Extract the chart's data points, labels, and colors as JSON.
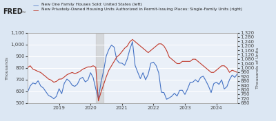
{
  "legend1": "New One Family Houses Sold: United States (left)",
  "legend2": "New Privately-Owned Housing Units Authorized in Permit-Issuing Places: Single-Family Units (right)",
  "ylabel_left": "Thousands",
  "ylabel_right": "Thousands of Units",
  "ylim_left": [
    500,
    1100
  ],
  "ylim_right": [
    680,
    1320
  ],
  "bg_color": "#dce7f3",
  "plot_bg_color": "#eaf0f8",
  "line1_color": "#4472c4",
  "line2_color": "#c0392b",
  "grid_color": "#ffffff",
  "new_homes_sold": [
    592,
    645,
    670,
    662,
    689,
    644,
    627,
    594,
    563,
    552,
    535,
    556,
    621,
    578,
    668,
    703,
    685,
    651,
    641,
    660,
    706,
    718,
    679,
    695,
    758,
    716,
    619,
    538,
    676,
    776,
    901,
    958,
    994,
    976,
    868,
    841,
    839,
    821,
    875,
    958,
    1023,
    820,
    762,
    707,
    758,
    697,
    745,
    839,
    848,
    819,
    757,
    591,
    588,
    531,
    542,
    557,
    582,
    558,
    607,
    608,
    572,
    618,
    676,
    677,
    698,
    679,
    718,
    728,
    688,
    643,
    588,
    664,
    677,
    658,
    697,
    619,
    638,
    698,
    737,
    718,
    748
  ],
  "permits": [
    1002,
    1018,
    988,
    978,
    966,
    957,
    937,
    918,
    897,
    887,
    868,
    876,
    896,
    898,
    916,
    936,
    948,
    957,
    947,
    955,
    968,
    987,
    997,
    1008,
    1008,
    1018,
    1005,
    698,
    778,
    847,
    918,
    978,
    1018,
    1058,
    1098,
    1118,
    1148,
    1178,
    1198,
    1238,
    1258,
    1238,
    1218,
    1198,
    1178,
    1158,
    1138,
    1158,
    1178,
    1198,
    1218,
    1218,
    1198,
    1158,
    1098,
    1078,
    1058,
    1038,
    1038,
    1058,
    1058,
    1058,
    1058,
    1078,
    1078,
    1058,
    1038,
    1018,
    998,
    978,
    958,
    958,
    978,
    998,
    1018,
    1018,
    998,
    958,
    978,
    968,
    958
  ],
  "rec_start_idx": 26,
  "rec_end_idx": 29,
  "xtick_indices": [
    12,
    24,
    36,
    48,
    60,
    72
  ],
  "xtick_labels": [
    "2019",
    "2020",
    "2021",
    "2022",
    "2023",
    "2024"
  ]
}
